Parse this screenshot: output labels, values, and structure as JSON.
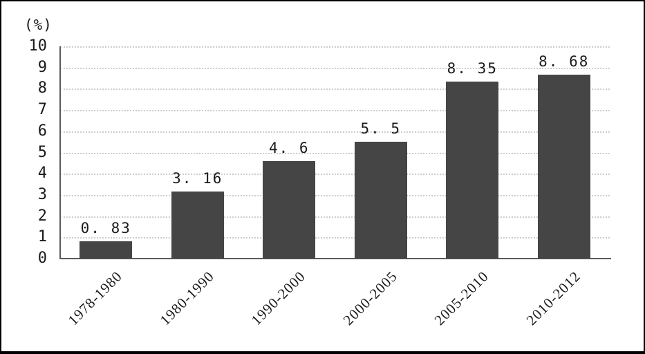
{
  "chart_data": {
    "type": "bar",
    "title": "",
    "ylabel_unit": "(%)",
    "categories": [
      "1978-1980",
      "1980-1990",
      "1990-2000",
      "2000-2005",
      "2005-2010",
      "2010-2012"
    ],
    "values": [
      0.83,
      3.16,
      4.6,
      5.5,
      8.35,
      8.68
    ],
    "value_labels": [
      "0. 83",
      "3. 16",
      "4. 6",
      "5. 5",
      "8. 35",
      "8. 68"
    ],
    "ylim": [
      0,
      10
    ],
    "yticks": [
      0,
      1,
      2,
      3,
      4,
      5,
      6,
      7,
      8,
      9,
      10
    ],
    "grid": "horizontal-dotted",
    "legend": "none",
    "colors": {
      "bar": "#454545",
      "gridline": "#cccccc",
      "axis": "#5a5a5a",
      "text": "#1a1a1a",
      "background": "#ffffff",
      "frame_border": "#000000"
    }
  }
}
